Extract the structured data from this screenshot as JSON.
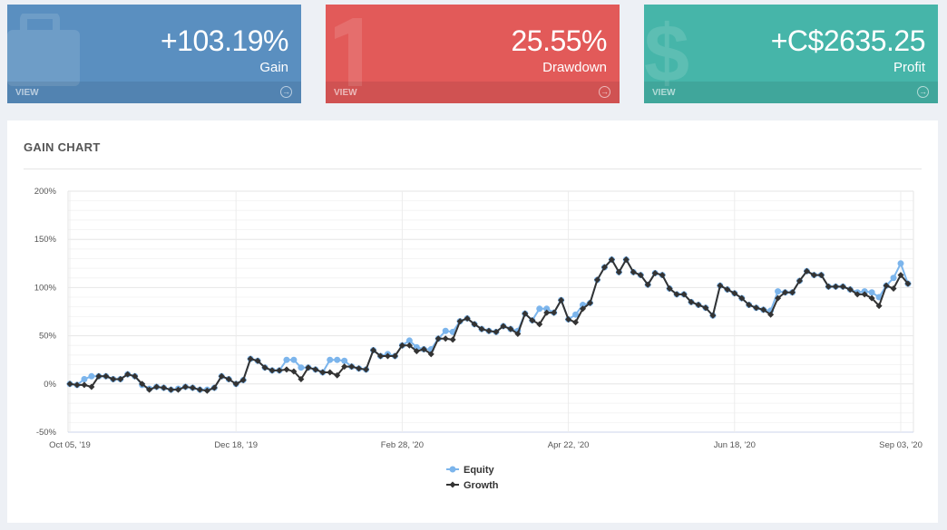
{
  "cards": [
    {
      "value": "+103.19%",
      "label": "Gain",
      "view": "VIEW",
      "color": "#5a8fc0",
      "icon": "briefcase-icon"
    },
    {
      "value": "25.55%",
      "label": "Drawdown",
      "view": "VIEW",
      "color": "#e25a59",
      "icon": "number-one-icon"
    },
    {
      "value": "+C$2635.25",
      "label": "Profit",
      "view": "VIEW",
      "color": "#46b5a9",
      "icon": "dollar-icon"
    }
  ],
  "panel": {
    "title": "GAIN CHART"
  },
  "chart_data": {
    "type": "line",
    "title": "GAIN CHART",
    "ylim": [
      -50,
      200
    ],
    "yticks": [
      "200%",
      "150%",
      "100%",
      "50%",
      "0%",
      "-50%"
    ],
    "ytick_values": [
      200,
      150,
      100,
      50,
      0,
      -50
    ],
    "xticks": [
      {
        "index": 0,
        "label": "Oct 05, '19"
      },
      {
        "index": 23,
        "label": "Dec 18, '19"
      },
      {
        "index": 46,
        "label": "Feb 28, '20"
      },
      {
        "index": 69,
        "label": "Apr 22, '20"
      },
      {
        "index": 92,
        "label": "Jun 18, '20"
      },
      {
        "index": 115,
        "label": "Sep 03, '20"
      }
    ],
    "legend": "bottom-center",
    "series": [
      {
        "name": "Equity",
        "color": "#7cb5ec",
        "marker": "circle",
        "values": [
          0,
          -1,
          5,
          8,
          8,
          8,
          5,
          5,
          10,
          8,
          -1,
          -5,
          -3,
          -4,
          -6,
          -5,
          -3,
          -4,
          -6,
          -6,
          -4,
          8,
          5,
          0,
          4,
          26,
          24,
          17,
          14,
          14,
          25,
          25,
          17,
          17,
          15,
          12,
          25,
          25,
          24,
          18,
          16,
          15,
          35,
          29,
          31,
          29,
          40,
          45,
          38,
          36,
          36,
          47,
          55,
          54,
          65,
          68,
          62,
          57,
          55,
          54,
          60,
          57,
          55,
          73,
          66,
          78,
          78,
          74,
          87,
          67,
          72,
          82,
          84,
          108,
          121,
          129,
          116,
          129,
          116,
          113,
          103,
          115,
          113,
          99,
          93,
          93,
          85,
          82,
          79,
          71,
          102,
          98,
          94,
          89,
          82,
          79,
          77,
          76,
          96,
          95,
          95,
          107,
          117,
          113,
          113,
          101,
          101,
          101,
          98,
          95,
          96,
          95,
          90,
          102,
          110,
          125,
          104
        ]
      },
      {
        "name": "Growth",
        "color": "#333333",
        "marker": "diamond",
        "values": [
          0,
          -1,
          -1,
          -3,
          8,
          8,
          5,
          5,
          10,
          8,
          0,
          -6,
          -3,
          -4,
          -6,
          -6,
          -3,
          -4,
          -6,
          -7,
          -4,
          8,
          5,
          0,
          4,
          26,
          24,
          17,
          14,
          14,
          15,
          13,
          5,
          17,
          15,
          12,
          12,
          9,
          18,
          18,
          16,
          15,
          35,
          29,
          29,
          29,
          40,
          40,
          34,
          36,
          31,
          47,
          47,
          46,
          65,
          68,
          62,
          57,
          55,
          54,
          60,
          57,
          52,
          73,
          66,
          62,
          74,
          74,
          87,
          67,
          64,
          78,
          84,
          108,
          121,
          129,
          116,
          129,
          116,
          113,
          103,
          115,
          113,
          99,
          93,
          93,
          85,
          82,
          79,
          71,
          102,
          98,
          94,
          89,
          82,
          79,
          77,
          72,
          89,
          95,
          95,
          107,
          117,
          113,
          113,
          101,
          101,
          101,
          98,
          93,
          93,
          89,
          81,
          102,
          99,
          113,
          104
        ]
      }
    ]
  }
}
